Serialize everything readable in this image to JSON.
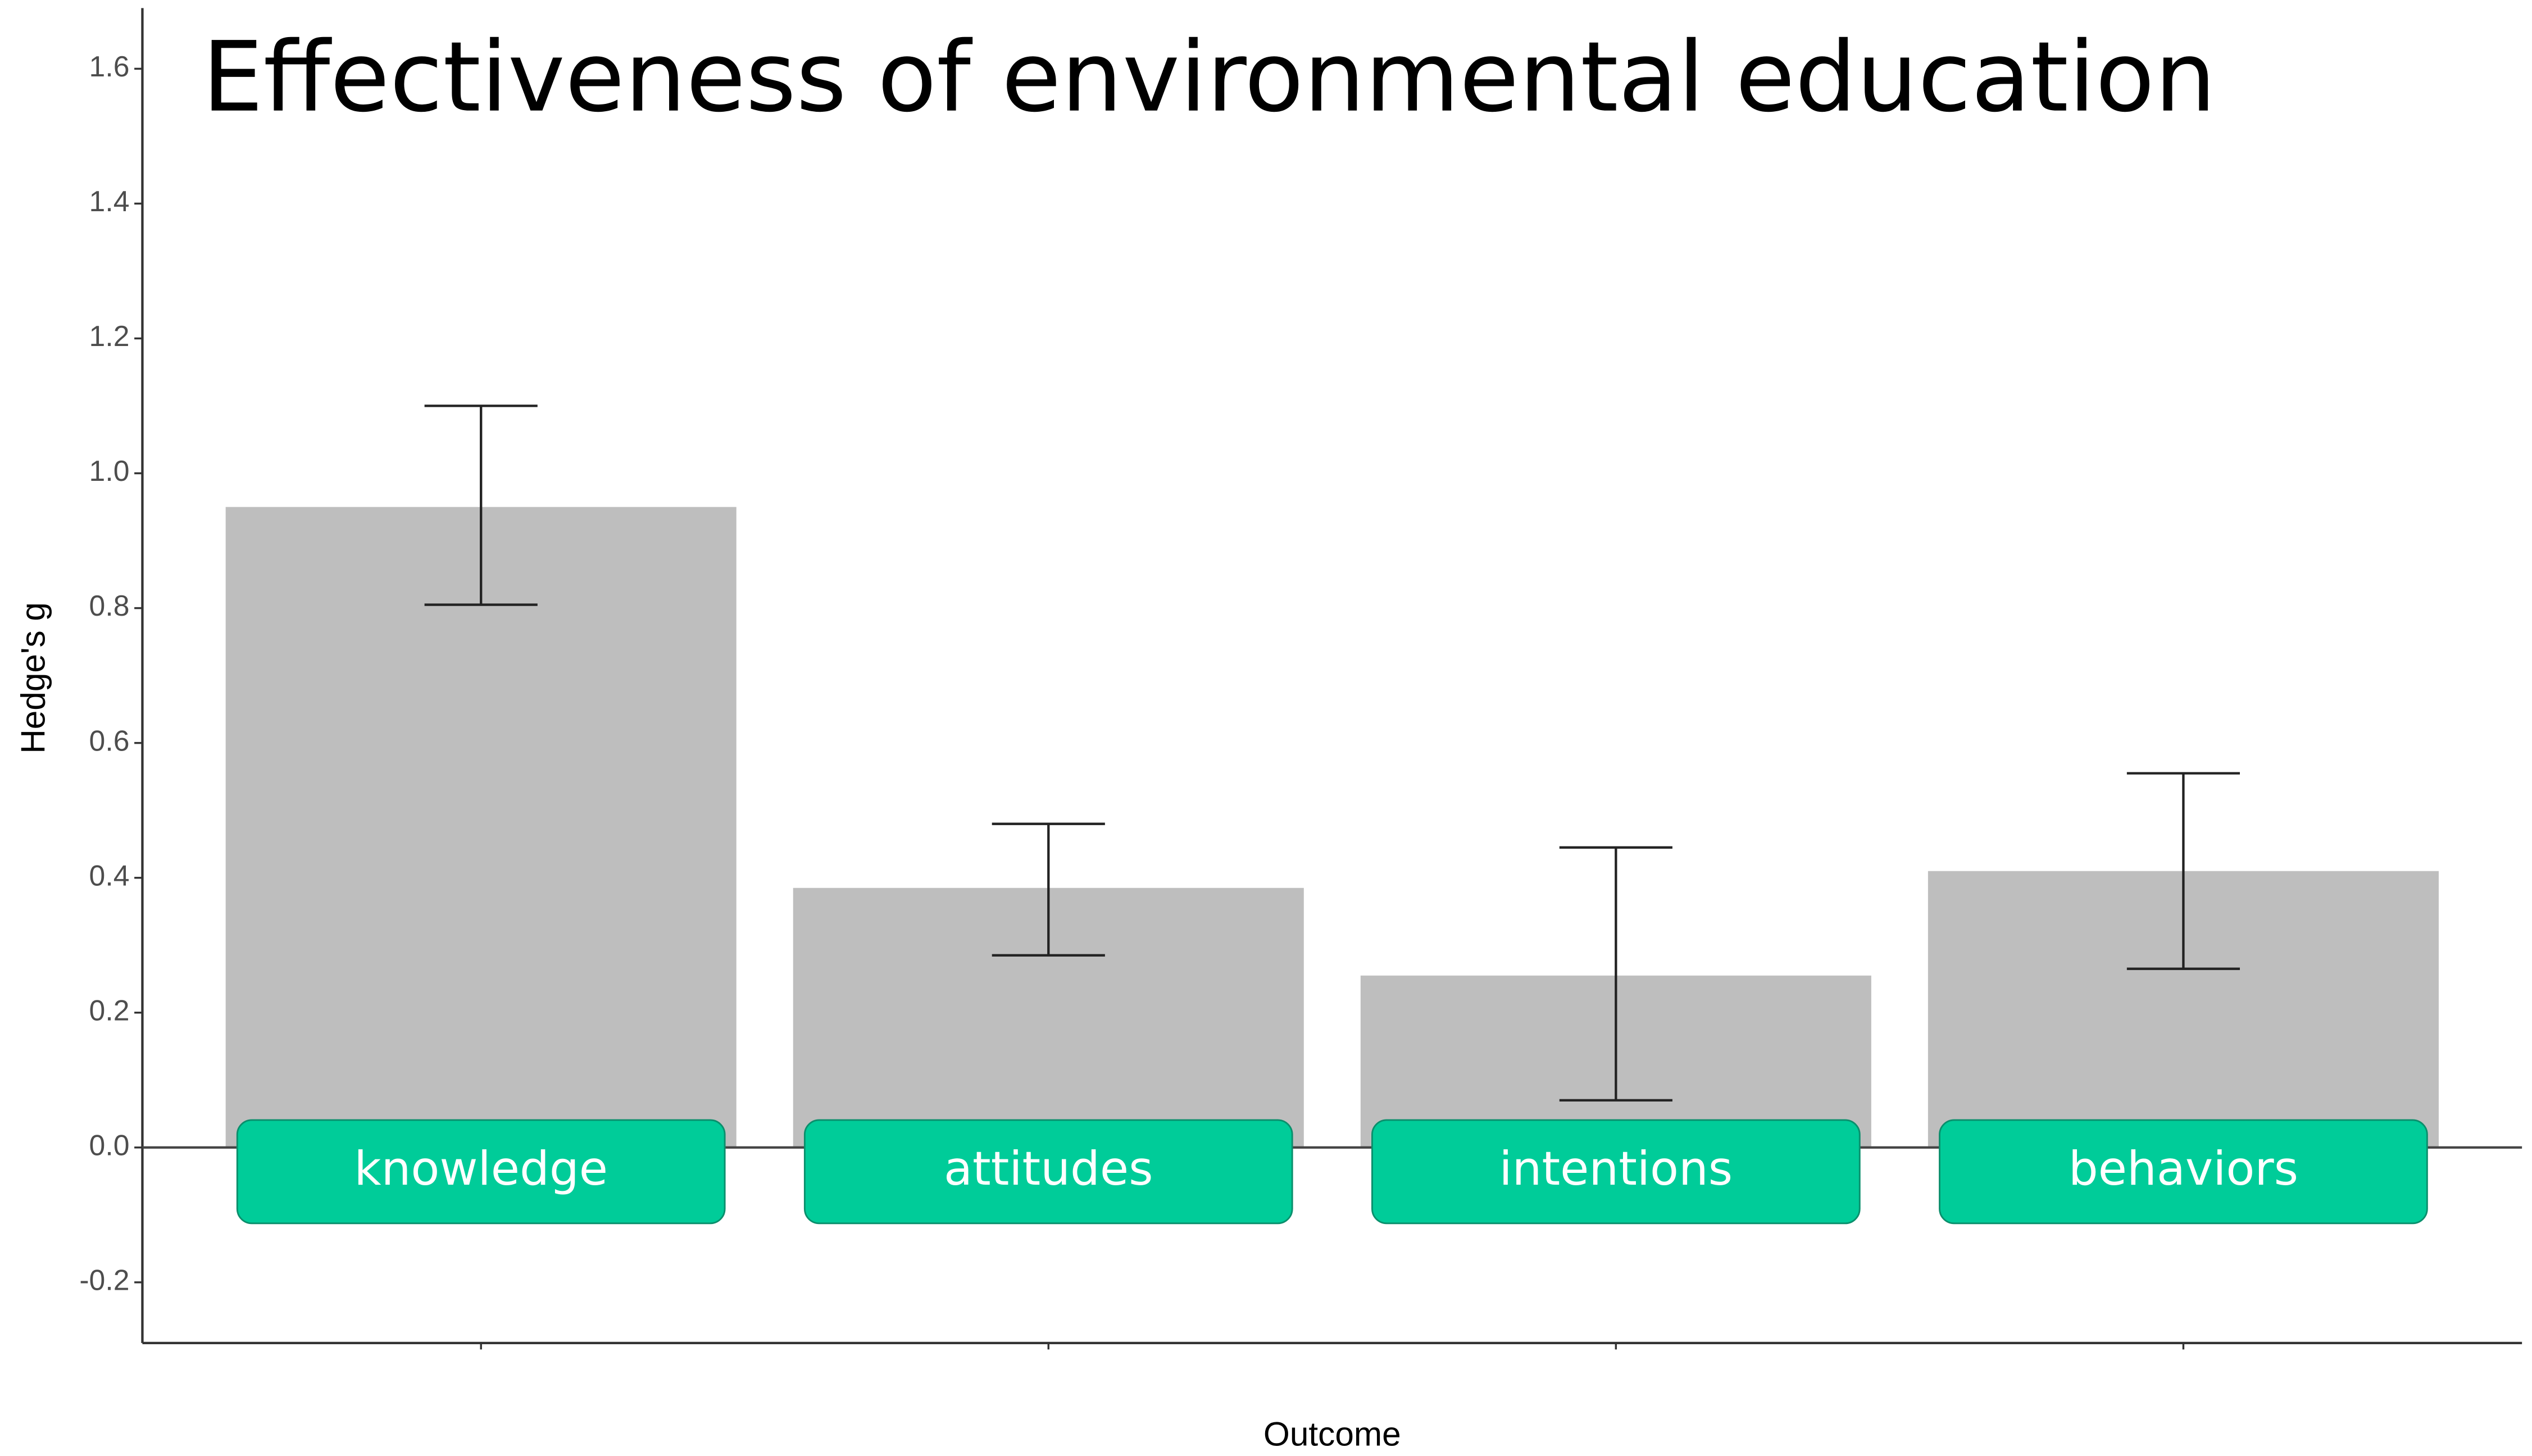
{
  "chart_data": {
    "type": "bar",
    "title": "Effectiveness of environmental education",
    "categories": [
      "knowledge",
      "attitudes",
      "intentions",
      "behaviors"
    ],
    "values": [
      0.95,
      0.385,
      0.255,
      0.41
    ],
    "ci_lower": [
      0.805,
      0.285,
      0.07,
      0.265
    ],
    "ci_upper": [
      1.1,
      0.48,
      0.445,
      0.555
    ],
    "color": "#bebebe",
    "label_box_color": "#00cc99",
    "x_label": "Outcome",
    "y_label": "Hedge's g",
    "ylim": [
      -0.29,
      1.69
    ],
    "yticks": [
      -0.2,
      {
        "value": 0,
        "label": "0.0"
      },
      0.2,
      0.4,
      0.6,
      0.8,
      {
        "value": 1,
        "label": "1.0"
      },
      1.2,
      1.4,
      1.6
    ],
    "grid": false
  }
}
